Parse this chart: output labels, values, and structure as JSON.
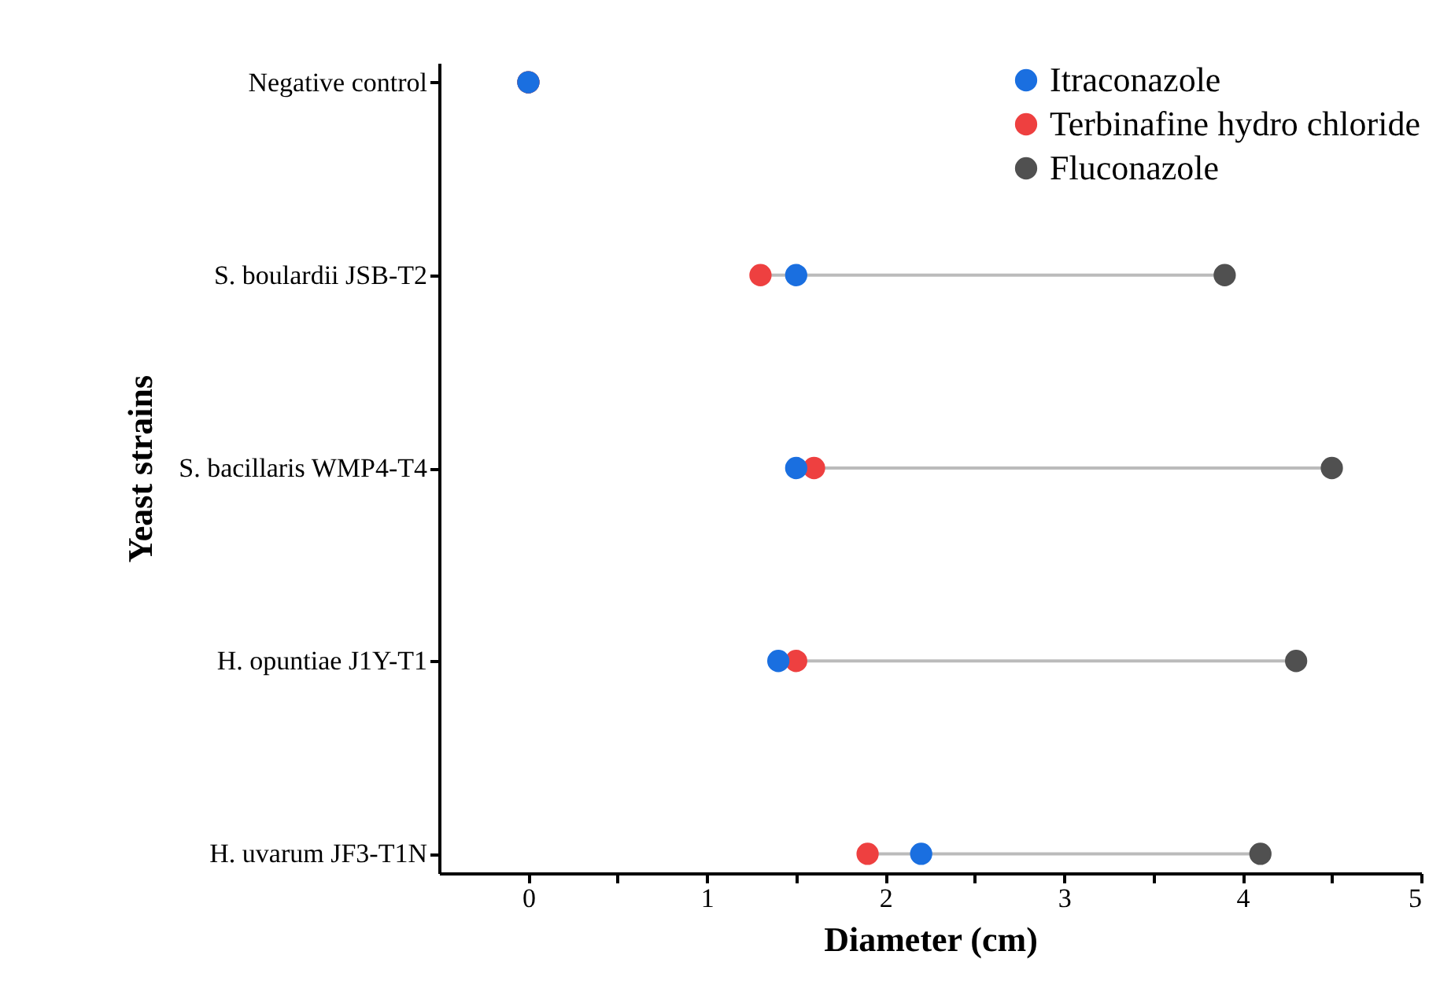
{
  "chart_data": {
    "type": "scatter",
    "orientation": "horizontal",
    "xlabel": "Diameter (cm)",
    "ylabel": "Yeast strains",
    "categories": [
      "Negative control",
      "S. boulardii JSB-T2",
      "S. bacillaris WMP4-T4",
      "H. opuntiae J1Y-T1",
      "H. uvarum JF3-T1N"
    ],
    "series": [
      {
        "name": "Itraconazole",
        "color": "#1a6fe0",
        "values": [
          0,
          1.5,
          1.5,
          1.4,
          2.2
        ]
      },
      {
        "name": "Terbinafine hydro chloride",
        "color": "#ee4040",
        "values": [
          0,
          1.3,
          1.6,
          1.5,
          1.9
        ]
      },
      {
        "name": "Fluconazole",
        "color": "#505050",
        "values": [
          0,
          3.9,
          4.5,
          4.3,
          4.1
        ]
      }
    ],
    "xlim": [
      -0.5,
      5
    ],
    "xticks": [
      0,
      {
        "value": 0.5,
        "label": null
      },
      1,
      {
        "value": 1.5,
        "label": null
      },
      2,
      {
        "value": 2.5,
        "label": null
      },
      3,
      {
        "value": 3.5,
        "label": null
      },
      4,
      {
        "value": 4.5,
        "label": null
      },
      5
    ],
    "marker": "circle",
    "grid": false,
    "legend": "top right"
  }
}
